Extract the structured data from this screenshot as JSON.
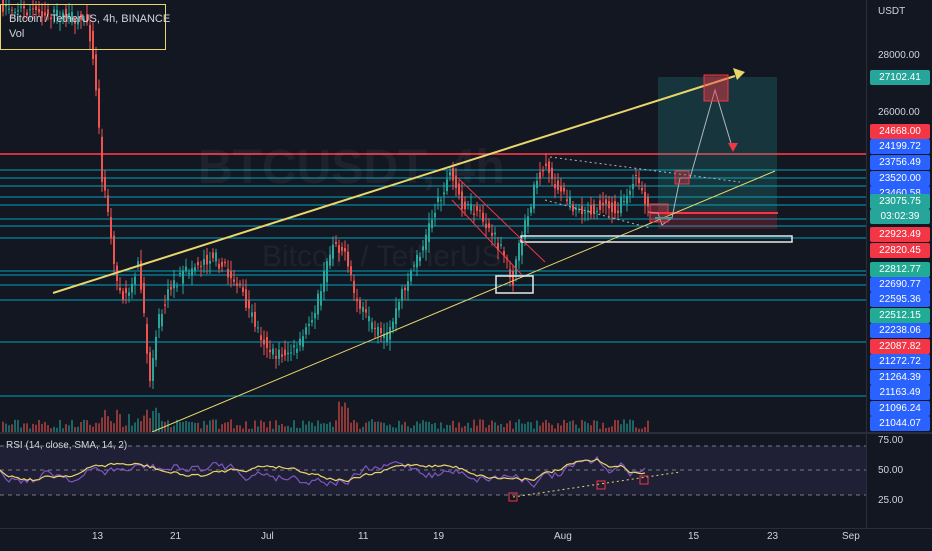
{
  "legend": {
    "title": "Bitcoin / TetherUS, 4h, BINANCE",
    "volume_label": "Vol"
  },
  "watermark": {
    "symbol": "BTCUSDT, 4h",
    "name": "Bitcoin / TetherUS"
  },
  "price_axis": {
    "currency": "USDT",
    "ticks": [
      "28000.00",
      "26000.00"
    ],
    "tags": [
      {
        "label": "27102.41",
        "bg": "#26a69a",
        "fg": "#ffffff"
      },
      {
        "label": "24668.00",
        "bg": "#f23645",
        "fg": "#ffffff"
      },
      {
        "label": "24199.72",
        "bg": "#2962ff",
        "fg": "#ffffff"
      },
      {
        "label": "23756.49",
        "bg": "#2962ff",
        "fg": "#ffffff"
      },
      {
        "label": "23520.00",
        "bg": "#2962ff",
        "fg": "#ffffff"
      },
      {
        "label": "23460.58",
        "bg": "#2962ff",
        "fg": "#ffffff"
      },
      {
        "label": "23075.75",
        "bg": "#26a69a",
        "fg": "#ffffff"
      },
      {
        "label": "03:02:39",
        "bg": "#26a69a",
        "fg": "#ffffff"
      },
      {
        "label": "22923.49",
        "bg": "#f23645",
        "fg": "#ffffff"
      },
      {
        "label": "22820.45",
        "bg": "#f23645",
        "fg": "#ffffff"
      },
      {
        "label": "22812.77",
        "bg": "#22ab94",
        "fg": "#ffffff"
      },
      {
        "label": "22690.77",
        "bg": "#2962ff",
        "fg": "#ffffff"
      },
      {
        "label": "22595.36",
        "bg": "#2962ff",
        "fg": "#ffffff"
      },
      {
        "label": "22512.15",
        "bg": "#22ab94",
        "fg": "#ffffff"
      },
      {
        "label": "22238.06",
        "bg": "#2962ff",
        "fg": "#ffffff"
      },
      {
        "label": "22087.82",
        "bg": "#f23645",
        "fg": "#ffffff"
      },
      {
        "label": "21272.72",
        "bg": "#2962ff",
        "fg": "#ffffff"
      },
      {
        "label": "21264.39",
        "bg": "#2962ff",
        "fg": "#ffffff"
      },
      {
        "label": "21163.49",
        "bg": "#2962ff",
        "fg": "#ffffff"
      },
      {
        "label": "21096.24",
        "bg": "#2962ff",
        "fg": "#ffffff"
      },
      {
        "label": "21044.07",
        "bg": "#2962ff",
        "fg": "#ffffff"
      }
    ]
  },
  "rsi": {
    "legend": "RSI (14, close, SMA, 14, 2)",
    "ticks": [
      "75.00",
      "50.00",
      "25.00"
    ]
  },
  "time_axis": {
    "labels": [
      "13",
      "21",
      "Jul",
      "11",
      "19",
      "Aug",
      "15",
      "23",
      "Sep"
    ]
  },
  "colors": {
    "background": "#131722",
    "up": "#26a69a",
    "down": "#ef5350",
    "trendline": "#e8d56b",
    "resistance": "#f23645",
    "level": "#00bcd4",
    "rsi_line": "#7e57c2",
    "rsi_ma": "#e8d56b"
  }
}
